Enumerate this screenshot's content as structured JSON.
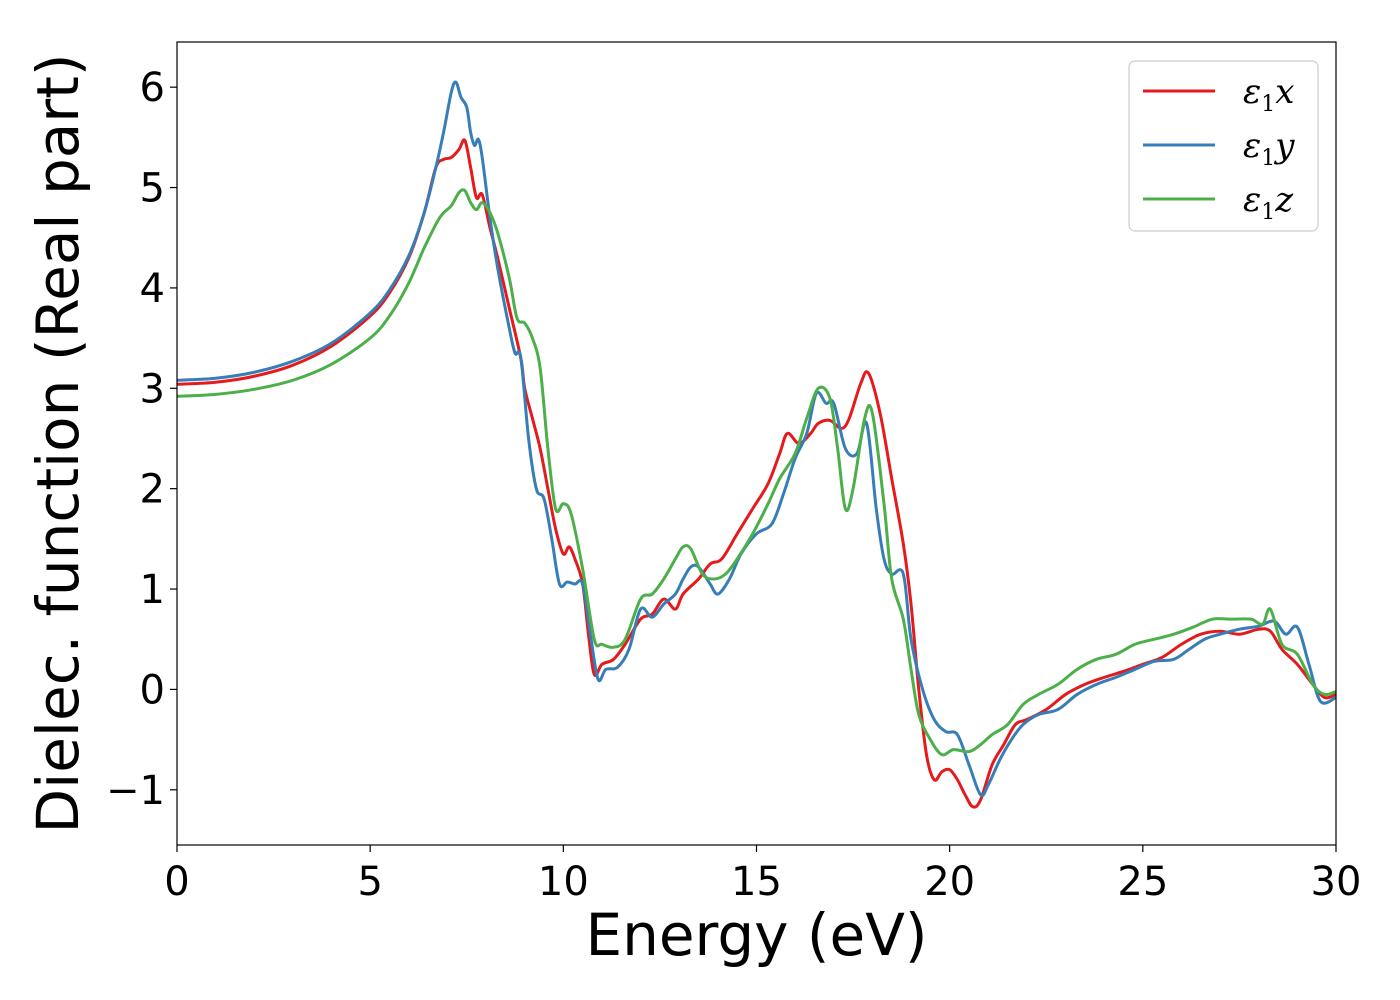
{
  "chart_data": {
    "type": "line",
    "title": "",
    "xlabel": "Energy (eV)",
    "ylabel": "Dielec. function (Real part)",
    "xlim": [
      0,
      30
    ],
    "ylim": [
      -1.55,
      6.45
    ],
    "xticks": [
      0,
      5,
      10,
      15,
      20,
      25,
      30
    ],
    "xtick_labels": [
      "0",
      "5",
      "10",
      "15",
      "20",
      "25",
      "30"
    ],
    "yticks": [
      -1,
      0,
      1,
      2,
      3,
      4,
      5,
      6
    ],
    "ytick_labels": [
      "−1",
      "0",
      "1",
      "2",
      "3",
      "4",
      "5",
      "6"
    ],
    "grid": false,
    "legend": {
      "position": "top-right"
    },
    "series": [
      {
        "name": "ε₁x",
        "legend_main": "ε",
        "legend_sub": "1",
        "legend_var": "x",
        "color": "#e41a1c",
        "points": [
          [
            0,
            3.04
          ],
          [
            1,
            3.06
          ],
          [
            2,
            3.12
          ],
          [
            3,
            3.23
          ],
          [
            4,
            3.42
          ],
          [
            5,
            3.72
          ],
          [
            5.5,
            3.95
          ],
          [
            6,
            4.3
          ],
          [
            6.4,
            4.75
          ],
          [
            6.7,
            5.2
          ],
          [
            6.9,
            5.28
          ],
          [
            7.1,
            5.3
          ],
          [
            7.3,
            5.38
          ],
          [
            7.45,
            5.47
          ],
          [
            7.6,
            5.2
          ],
          [
            7.75,
            4.9
          ],
          [
            7.9,
            4.93
          ],
          [
            8.1,
            4.6
          ],
          [
            8.3,
            4.3
          ],
          [
            8.6,
            3.8
          ],
          [
            8.9,
            3.3
          ],
          [
            9.0,
            3.0
          ],
          [
            9.2,
            2.7
          ],
          [
            9.4,
            2.4
          ],
          [
            9.6,
            2.0
          ],
          [
            9.8,
            1.6
          ],
          [
            10.0,
            1.35
          ],
          [
            10.15,
            1.42
          ],
          [
            10.3,
            1.3
          ],
          [
            10.5,
            1.05
          ],
          [
            10.65,
            0.55
          ],
          [
            10.8,
            0.15
          ],
          [
            11.0,
            0.25
          ],
          [
            11.3,
            0.3
          ],
          [
            11.6,
            0.45
          ],
          [
            12.0,
            0.7
          ],
          [
            12.3,
            0.75
          ],
          [
            12.6,
            0.9
          ],
          [
            12.9,
            0.8
          ],
          [
            13.1,
            0.95
          ],
          [
            13.5,
            1.1
          ],
          [
            13.8,
            1.25
          ],
          [
            14.1,
            1.3
          ],
          [
            14.5,
            1.55
          ],
          [
            14.9,
            1.8
          ],
          [
            15.3,
            2.05
          ],
          [
            15.6,
            2.35
          ],
          [
            15.8,
            2.55
          ],
          [
            16.1,
            2.45
          ],
          [
            16.4,
            2.55
          ],
          [
            16.6,
            2.65
          ],
          [
            16.9,
            2.68
          ],
          [
            17.2,
            2.6
          ],
          [
            17.4,
            2.7
          ],
          [
            17.7,
            3.05
          ],
          [
            17.9,
            3.15
          ],
          [
            18.2,
            2.75
          ],
          [
            18.5,
            2.1
          ],
          [
            18.8,
            1.45
          ],
          [
            19.0,
            0.85
          ],
          [
            19.2,
            0.0
          ],
          [
            19.4,
            -0.65
          ],
          [
            19.6,
            -0.9
          ],
          [
            19.8,
            -0.82
          ],
          [
            20.0,
            -0.8
          ],
          [
            20.2,
            -0.9
          ],
          [
            20.4,
            -1.05
          ],
          [
            20.6,
            -1.17
          ],
          [
            20.8,
            -1.1
          ],
          [
            21.1,
            -0.75
          ],
          [
            21.4,
            -0.55
          ],
          [
            21.7,
            -0.35
          ],
          [
            22.0,
            -0.3
          ],
          [
            22.5,
            -0.2
          ],
          [
            23.0,
            -0.05
          ],
          [
            23.5,
            0.05
          ],
          [
            24.0,
            0.12
          ],
          [
            24.5,
            0.18
          ],
          [
            25.0,
            0.25
          ],
          [
            25.5,
            0.32
          ],
          [
            26.0,
            0.45
          ],
          [
            26.5,
            0.55
          ],
          [
            27.0,
            0.58
          ],
          [
            27.5,
            0.55
          ],
          [
            28.0,
            0.6
          ],
          [
            28.3,
            0.58
          ],
          [
            28.6,
            0.4
          ],
          [
            29.0,
            0.25
          ],
          [
            29.4,
            0.05
          ],
          [
            29.7,
            -0.08
          ],
          [
            30.0,
            -0.05
          ]
        ]
      },
      {
        "name": "ε₁y",
        "legend_main": "ε",
        "legend_sub": "1",
        "legend_var": "y",
        "color": "#377eb8",
        "points": [
          [
            0,
            3.08
          ],
          [
            1,
            3.1
          ],
          [
            2,
            3.16
          ],
          [
            3,
            3.27
          ],
          [
            4,
            3.45
          ],
          [
            5,
            3.75
          ],
          [
            5.5,
            3.98
          ],
          [
            6,
            4.32
          ],
          [
            6.4,
            4.75
          ],
          [
            6.7,
            5.2
          ],
          [
            6.9,
            5.55
          ],
          [
            7.1,
            5.95
          ],
          [
            7.22,
            6.05
          ],
          [
            7.35,
            5.9
          ],
          [
            7.5,
            5.8
          ],
          [
            7.6,
            5.55
          ],
          [
            7.7,
            5.42
          ],
          [
            7.8,
            5.48
          ],
          [
            7.9,
            5.3
          ],
          [
            8.1,
            4.7
          ],
          [
            8.3,
            4.2
          ],
          [
            8.6,
            3.6
          ],
          [
            8.75,
            3.35
          ],
          [
            8.9,
            3.3
          ],
          [
            9.1,
            2.5
          ],
          [
            9.3,
            2.0
          ],
          [
            9.5,
            1.9
          ],
          [
            9.7,
            1.5
          ],
          [
            9.9,
            1.05
          ],
          [
            10.1,
            1.07
          ],
          [
            10.3,
            1.05
          ],
          [
            10.5,
            1.05
          ],
          [
            10.7,
            0.55
          ],
          [
            10.9,
            0.1
          ],
          [
            11.1,
            0.2
          ],
          [
            11.4,
            0.22
          ],
          [
            11.7,
            0.4
          ],
          [
            12.0,
            0.8
          ],
          [
            12.3,
            0.72
          ],
          [
            12.6,
            0.85
          ],
          [
            12.9,
            0.95
          ],
          [
            13.1,
            1.1
          ],
          [
            13.3,
            1.22
          ],
          [
            13.5,
            1.22
          ],
          [
            13.8,
            1.05
          ],
          [
            14.0,
            0.95
          ],
          [
            14.3,
            1.1
          ],
          [
            14.6,
            1.35
          ],
          [
            15.0,
            1.55
          ],
          [
            15.4,
            1.65
          ],
          [
            15.7,
            1.95
          ],
          [
            16.0,
            2.3
          ],
          [
            16.3,
            2.55
          ],
          [
            16.55,
            2.95
          ],
          [
            16.8,
            2.85
          ],
          [
            17.0,
            2.85
          ],
          [
            17.3,
            2.4
          ],
          [
            17.6,
            2.35
          ],
          [
            17.85,
            2.65
          ],
          [
            18.1,
            1.8
          ],
          [
            18.3,
            1.3
          ],
          [
            18.5,
            1.15
          ],
          [
            18.8,
            1.15
          ],
          [
            19.0,
            0.5
          ],
          [
            19.3,
            0.0
          ],
          [
            19.6,
            -0.3
          ],
          [
            19.9,
            -0.42
          ],
          [
            20.2,
            -0.45
          ],
          [
            20.5,
            -0.75
          ],
          [
            20.8,
            -1.05
          ],
          [
            21.0,
            -0.95
          ],
          [
            21.3,
            -0.7
          ],
          [
            21.6,
            -0.5
          ],
          [
            21.9,
            -0.35
          ],
          [
            22.3,
            -0.25
          ],
          [
            22.8,
            -0.2
          ],
          [
            23.3,
            -0.05
          ],
          [
            23.8,
            0.05
          ],
          [
            24.3,
            0.12
          ],
          [
            24.8,
            0.2
          ],
          [
            25.3,
            0.28
          ],
          [
            25.8,
            0.3
          ],
          [
            26.2,
            0.4
          ],
          [
            26.6,
            0.5
          ],
          [
            27.0,
            0.55
          ],
          [
            27.5,
            0.6
          ],
          [
            28.0,
            0.63
          ],
          [
            28.4,
            0.68
          ],
          [
            28.7,
            0.55
          ],
          [
            29.0,
            0.62
          ],
          [
            29.3,
            0.25
          ],
          [
            29.6,
            -0.12
          ],
          [
            30.0,
            -0.08
          ]
        ]
      },
      {
        "name": "ε₁z",
        "legend_main": "ε",
        "legend_sub": "1",
        "legend_var": "z",
        "color": "#4daf4a",
        "points": [
          [
            0,
            2.92
          ],
          [
            1,
            2.94
          ],
          [
            2,
            2.99
          ],
          [
            3,
            3.08
          ],
          [
            4,
            3.24
          ],
          [
            5,
            3.5
          ],
          [
            5.5,
            3.72
          ],
          [
            6,
            4.05
          ],
          [
            6.4,
            4.4
          ],
          [
            6.8,
            4.7
          ],
          [
            7.1,
            4.82
          ],
          [
            7.3,
            4.95
          ],
          [
            7.45,
            4.97
          ],
          [
            7.6,
            4.85
          ],
          [
            7.75,
            4.78
          ],
          [
            7.9,
            4.85
          ],
          [
            8.1,
            4.75
          ],
          [
            8.3,
            4.55
          ],
          [
            8.6,
            4.1
          ],
          [
            8.8,
            3.7
          ],
          [
            9.0,
            3.65
          ],
          [
            9.2,
            3.5
          ],
          [
            9.4,
            3.2
          ],
          [
            9.6,
            2.4
          ],
          [
            9.8,
            1.8
          ],
          [
            10.0,
            1.85
          ],
          [
            10.2,
            1.75
          ],
          [
            10.5,
            1.2
          ],
          [
            10.8,
            0.5
          ],
          [
            11.0,
            0.45
          ],
          [
            11.3,
            0.42
          ],
          [
            11.6,
            0.5
          ],
          [
            12.0,
            0.9
          ],
          [
            12.3,
            0.95
          ],
          [
            12.6,
            1.1
          ],
          [
            12.9,
            1.3
          ],
          [
            13.1,
            1.42
          ],
          [
            13.3,
            1.4
          ],
          [
            13.6,
            1.15
          ],
          [
            13.9,
            1.1
          ],
          [
            14.2,
            1.15
          ],
          [
            14.5,
            1.3
          ],
          [
            14.9,
            1.55
          ],
          [
            15.3,
            1.85
          ],
          [
            15.6,
            2.1
          ],
          [
            16.0,
            2.35
          ],
          [
            16.3,
            2.7
          ],
          [
            16.6,
            3.0
          ],
          [
            16.9,
            2.9
          ],
          [
            17.1,
            2.4
          ],
          [
            17.3,
            1.8
          ],
          [
            17.5,
            2.0
          ],
          [
            17.8,
            2.7
          ],
          [
            18.0,
            2.75
          ],
          [
            18.3,
            1.85
          ],
          [
            18.5,
            1.1
          ],
          [
            18.8,
            0.7
          ],
          [
            19.0,
            0.2
          ],
          [
            19.2,
            -0.25
          ],
          [
            19.5,
            -0.5
          ],
          [
            19.8,
            -0.65
          ],
          [
            20.1,
            -0.6
          ],
          [
            20.5,
            -0.62
          ],
          [
            20.8,
            -0.55
          ],
          [
            21.1,
            -0.45
          ],
          [
            21.5,
            -0.35
          ],
          [
            21.9,
            -0.15
          ],
          [
            22.3,
            -0.05
          ],
          [
            22.8,
            0.05
          ],
          [
            23.3,
            0.2
          ],
          [
            23.8,
            0.3
          ],
          [
            24.3,
            0.35
          ],
          [
            24.8,
            0.45
          ],
          [
            25.3,
            0.5
          ],
          [
            25.8,
            0.55
          ],
          [
            26.3,
            0.62
          ],
          [
            26.8,
            0.7
          ],
          [
            27.3,
            0.7
          ],
          [
            27.8,
            0.7
          ],
          [
            28.1,
            0.65
          ],
          [
            28.3,
            0.8
          ],
          [
            28.6,
            0.45
          ],
          [
            29.0,
            0.35
          ],
          [
            29.4,
            0.05
          ],
          [
            29.7,
            -0.05
          ],
          [
            30.0,
            -0.02
          ]
        ]
      }
    ]
  }
}
